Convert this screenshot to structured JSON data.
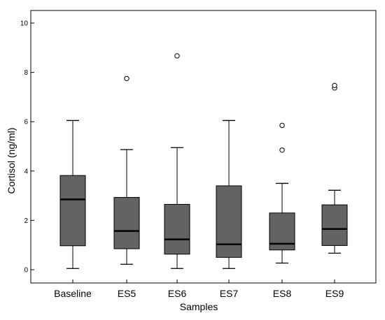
{
  "chart_data": {
    "type": "boxplot",
    "xlabel": "Samples",
    "ylabel": "Cortisol (ng/ml)",
    "ylim": [
      0,
      10
    ],
    "yticks": [
      "0",
      "2",
      "4",
      "6",
      "8",
      "10"
    ],
    "grid": false,
    "colors": {
      "box": "#636363",
      "line": "#000000",
      "background": "#ffffff"
    },
    "categories": [
      "Baseline",
      "ES5",
      "ES6",
      "ES7",
      "ES8",
      "ES9"
    ],
    "boxes": [
      {
        "min": 0.05,
        "q1": 0.97,
        "median": 2.85,
        "q3": 3.82,
        "max": 6.05,
        "outliers": []
      },
      {
        "min": 0.22,
        "q1": 0.85,
        "median": 1.57,
        "q3": 2.93,
        "max": 4.87,
        "outliers": [
          7.75
        ]
      },
      {
        "min": 0.05,
        "q1": 0.63,
        "median": 1.23,
        "q3": 2.65,
        "max": 4.95,
        "outliers": [
          8.67
        ]
      },
      {
        "min": 0.05,
        "q1": 0.5,
        "median": 1.03,
        "q3": 3.4,
        "max": 6.05,
        "outliers": []
      },
      {
        "min": 0.27,
        "q1": 0.8,
        "median": 1.05,
        "q3": 2.3,
        "max": 3.5,
        "outliers": [
          4.85,
          5.85
        ]
      },
      {
        "min": 0.67,
        "q1": 0.98,
        "median": 1.65,
        "q3": 2.63,
        "max": 3.22,
        "outliers": [
          7.37,
          7.47
        ]
      }
    ]
  }
}
